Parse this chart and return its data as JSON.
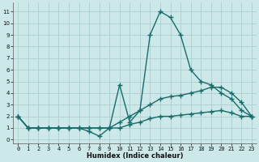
{
  "xlabel": "Humidex (Indice chaleur)",
  "bg_color": "#cce8e8",
  "grid_color": "#aacfcf",
  "line_color": "#1a6b6b",
  "marker": "+",
  "markersize": 4,
  "linewidth": 1.0,
  "xlim": [
    -0.5,
    23.5
  ],
  "ylim": [
    -0.3,
    11.8
  ],
  "xticks": [
    0,
    1,
    2,
    3,
    4,
    5,
    6,
    7,
    8,
    9,
    10,
    11,
    12,
    13,
    14,
    15,
    16,
    17,
    18,
    19,
    20,
    21,
    22,
    23
  ],
  "yticks": [
    0,
    1,
    2,
    3,
    4,
    5,
    6,
    7,
    8,
    9,
    10,
    11
  ],
  "line1_x": [
    0,
    1,
    2,
    3,
    4,
    5,
    6,
    7,
    8,
    9,
    10,
    11,
    12,
    13,
    14,
    15,
    16,
    17,
    18,
    19,
    20,
    21,
    22,
    23
  ],
  "line1_y": [
    2,
    1,
    1,
    1,
    1,
    1,
    1,
    0.7,
    0.3,
    1,
    4.7,
    1.5,
    2.5,
    9,
    11,
    10.5,
    9,
    6,
    5,
    4.7,
    4,
    3.5,
    2.5,
    2
  ],
  "line2_x": [
    0,
    1,
    2,
    3,
    4,
    5,
    6,
    7,
    8,
    9,
    10,
    11,
    12,
    13,
    14,
    15,
    16,
    17,
    18,
    19,
    20,
    21,
    22,
    23
  ],
  "line2_y": [
    2,
    1,
    1,
    1,
    1,
    1,
    1,
    1,
    1,
    1,
    1.5,
    2,
    2.5,
    3,
    3.5,
    3.7,
    3.8,
    4,
    4.2,
    4.5,
    4.5,
    4,
    3.2,
    2
  ],
  "line3_x": [
    0,
    1,
    2,
    3,
    4,
    5,
    6,
    7,
    8,
    9,
    10,
    11,
    12,
    13,
    14,
    15,
    16,
    17,
    18,
    19,
    20,
    21,
    22,
    23
  ],
  "line3_y": [
    2,
    1,
    1,
    1,
    1,
    1,
    1,
    1,
    1,
    1,
    1,
    1.3,
    1.5,
    1.8,
    2,
    2.0,
    2.1,
    2.2,
    2.3,
    2.4,
    2.5,
    2.3,
    2,
    2
  ]
}
